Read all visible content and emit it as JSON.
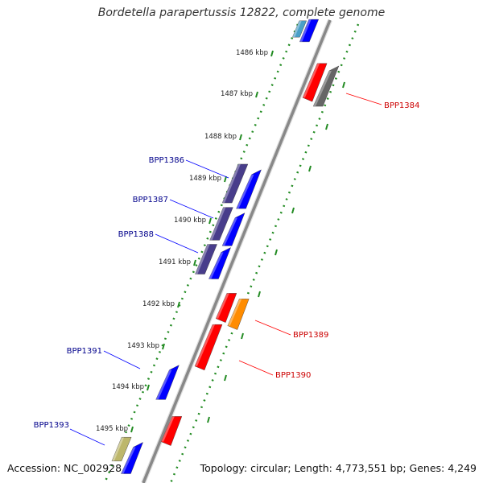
{
  "title": "Bordetella parapertussis 12822, complete genome",
  "footer": {
    "accession": "Accession: NC_002928",
    "summary": "Topology: circular; Length: 4,773,551 bp; Genes: 4,249"
  },
  "ticks": [
    "1486 kbp",
    "1487 kbp",
    "1488 kbp",
    "1489 kbp",
    "1490 kbp",
    "1491 kbp",
    "1492 kbp",
    "1493 kbp",
    "1494 kbp",
    "1495 kbp"
  ],
  "genes": [
    {
      "label": "BPP1384",
      "strand": "reverse",
      "color": "#cc0000"
    },
    {
      "label": "BPP1386",
      "strand": "forward",
      "color": "#00008b"
    },
    {
      "label": "BPP1387",
      "strand": "forward",
      "color": "#00008b"
    },
    {
      "label": "BPP1388",
      "strand": "forward",
      "color": "#00008b"
    },
    {
      "label": "BPP1389",
      "strand": "reverse",
      "color": "#cc0000"
    },
    {
      "label": "BPP1390",
      "strand": "reverse",
      "color": "#cc0000"
    },
    {
      "label": "BPP1391",
      "strand": "forward",
      "color": "#00008b"
    },
    {
      "label": "BPP1393",
      "strand": "forward",
      "color": "#00008b"
    }
  ],
  "colors": {
    "forward_cds": "#0000ff",
    "reverse_cds": "#ff0000",
    "operon": "#483d8b",
    "grey_feature": "#666666",
    "orange_feature": "#ff8c00",
    "khaki_feature": "#bdb76b",
    "backbone": "#888888",
    "dotted_track": "#228b22"
  }
}
